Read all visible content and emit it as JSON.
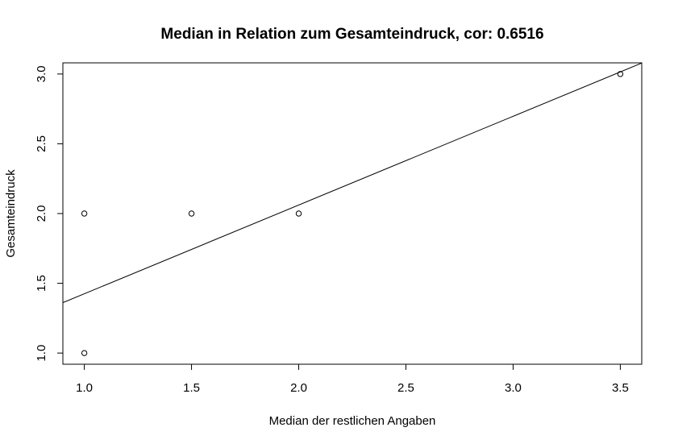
{
  "chart_data": {
    "type": "scatter",
    "title": "Median in Relation zum Gesamteindruck, cor: 0.6516",
    "xlabel": "Median der restlichen Angaben",
    "ylabel": "Gesamteindruck",
    "xlim": [
      0.9,
      3.6
    ],
    "ylim": [
      0.92,
      3.08
    ],
    "x_ticks": [
      1.0,
      1.5,
      2.0,
      2.5,
      3.0,
      3.5
    ],
    "x_tick_labels": [
      "1.0",
      "1.5",
      "2.0",
      "2.5",
      "3.0",
      "3.5"
    ],
    "y_ticks": [
      1.0,
      1.5,
      2.0,
      2.5,
      3.0
    ],
    "y_tick_labels": [
      "1.0",
      "1.5",
      "2.0",
      "2.5",
      "3.0"
    ],
    "points": [
      {
        "x": 1.0,
        "y": 2.0
      },
      {
        "x": 1.0,
        "y": 1.0
      },
      {
        "x": 1.5,
        "y": 2.0
      },
      {
        "x": 2.0,
        "y": 2.0
      },
      {
        "x": 3.5,
        "y": 3.0
      }
    ],
    "regression_line": {
      "intercept": 0.789,
      "slope": 0.636
    },
    "grid": false,
    "legend": "none",
    "point_style": "open-circle",
    "colors": {
      "foreground": "#000000",
      "background": "#ffffff"
    }
  }
}
